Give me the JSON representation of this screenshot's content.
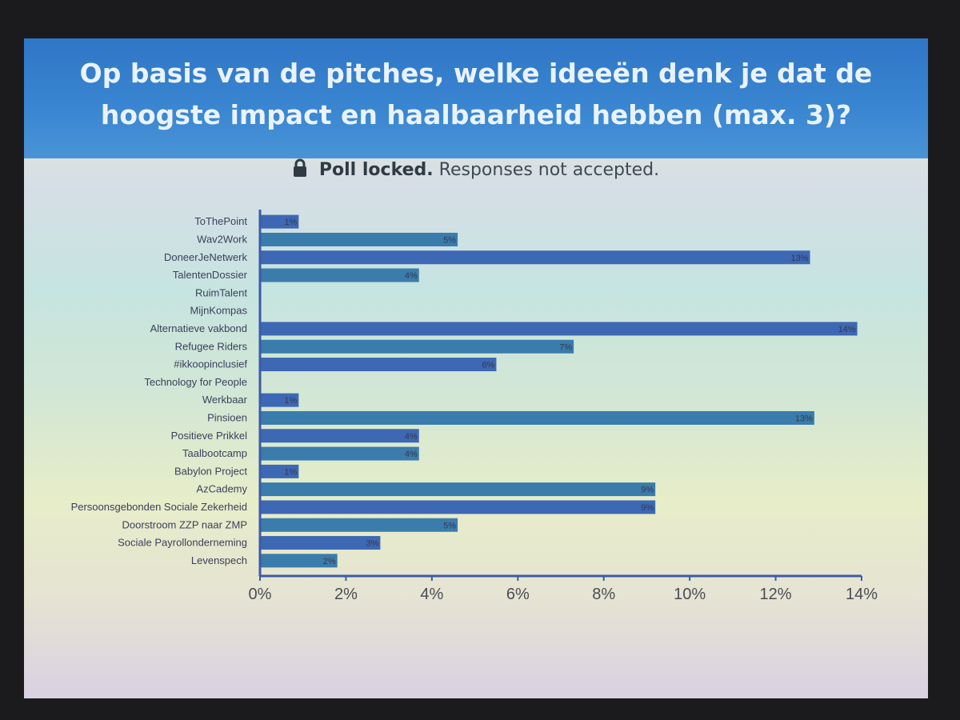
{
  "slide": {
    "title": "Op basis van de pitches, welke ideeën denk je dat de hoogste impact en haalbaarheid hebben (max. 3)?",
    "status_bold": "Poll locked.",
    "status_rest": "Responses not accepted."
  },
  "colors": {
    "bar": "#3d68b4",
    "bar_alt": "#3a7cac",
    "axis": "#3c5aa8"
  },
  "chart_data": {
    "type": "bar",
    "orientation": "horizontal",
    "categories": [
      "ToThePoint",
      "Wav2Work",
      "DoneerJeNetwerk",
      "TalentenDossier",
      "RuimTalent",
      "MijnKompas",
      "Alternatieve vakbond",
      "Refugee Riders",
      "#ikkoopinclusief",
      "Technology for People",
      "Werkbaar",
      "Pinsioen",
      "Positieve Prikkel",
      "Taalbootcamp",
      "Babylon Project",
      "AzCademy",
      "Persoonsgebonden Sociale Zekerheid",
      "Doorstroom ZZP naar ZMP",
      "Sociale Payrollonderneming",
      "Levenspech"
    ],
    "values": [
      0.9,
      4.6,
      12.8,
      3.7,
      0,
      0,
      13.9,
      7.3,
      5.5,
      0,
      0.9,
      12.9,
      3.7,
      3.7,
      0.9,
      9.2,
      9.2,
      4.6,
      2.8,
      1.8
    ],
    "value_labels": [
      "1%",
      "5%",
      "13%",
      "4%",
      "",
      "",
      "14%",
      "7%",
      "6%",
      "",
      "1%",
      "13%",
      "4%",
      "4%",
      "1%",
      "9%",
      "9%",
      "5%",
      "3%",
      "2%"
    ],
    "xlim": [
      0,
      14
    ],
    "x_ticks": [
      "0%",
      "2%",
      "4%",
      "6%",
      "8%",
      "10%",
      "12%",
      "14%"
    ],
    "grid": false,
    "legend": "none"
  }
}
